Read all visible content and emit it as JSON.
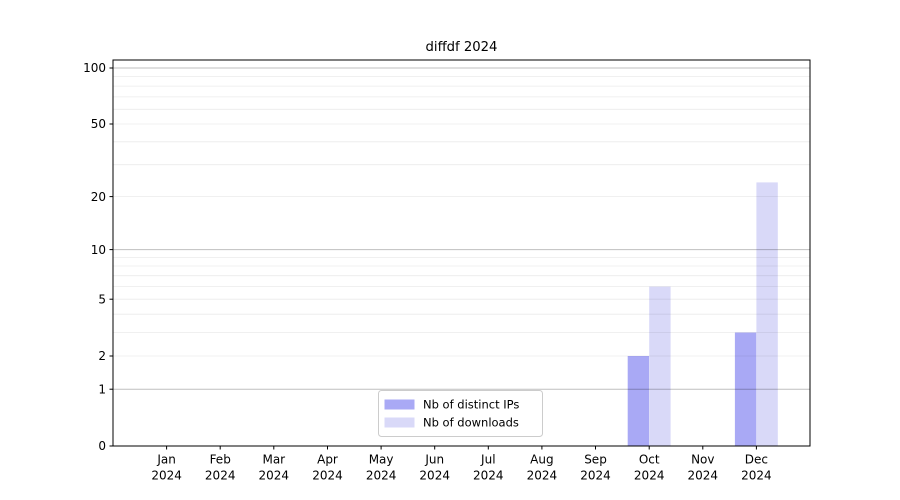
{
  "chart_data": {
    "type": "bar",
    "title": "diffdf 2024",
    "categories": [
      "Jan",
      "Feb",
      "Mar",
      "Apr",
      "May",
      "Jun",
      "Jul",
      "Aug",
      "Sep",
      "Oct",
      "Nov",
      "Dec"
    ],
    "category_year": "2024",
    "series": [
      {
        "name": "Nb of distinct IPs",
        "color": "#a9a9f5",
        "values": [
          0,
          0,
          0,
          0,
          0,
          0,
          0,
          0,
          0,
          2,
          0,
          3
        ]
      },
      {
        "name": "Nb of downloads",
        "color": "#d9d9f8",
        "values": [
          0,
          0,
          0,
          0,
          0,
          0,
          0,
          0,
          0,
          6,
          0,
          24
        ]
      }
    ],
    "xlabel": "",
    "ylabel": "",
    "yscale": "log1p",
    "ylim": [
      0,
      112
    ],
    "ytick_labels": [
      0,
      1,
      2,
      5,
      10,
      20,
      50,
      100
    ],
    "major_gridlines": [
      1,
      10,
      100
    ],
    "minor_gridlines": [
      2,
      3,
      4,
      5,
      6,
      7,
      8,
      9,
      20,
      30,
      40,
      50,
      60,
      70,
      80,
      90
    ],
    "grid": true,
    "legend_position": "lower center",
    "colors": {
      "axis": "#000000",
      "grid_major": "rgba(0,0,0,0.25)",
      "grid_minor": "rgba(0,0,0,0.08)",
      "legend_border": "#cccccc",
      "legend_background": "#ffffff",
      "plot_background": "#ffffff"
    }
  }
}
